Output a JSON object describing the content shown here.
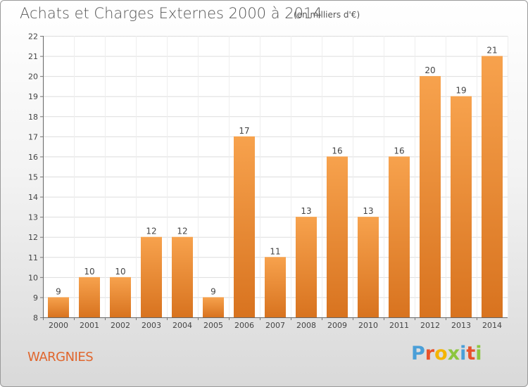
{
  "header": {
    "title": "Achats et Charges Externes 2000 à 2014",
    "subtitle": "(en milliers d'€)"
  },
  "footer": {
    "city": "WARGNIES",
    "brand": "Proxiti"
  },
  "colors": {
    "bar_light": "#f7a24d",
    "bar_dark": "#d8731f",
    "brand_letters": [
      "#4a9fd8",
      "#e8522b",
      "#f4b400",
      "#8cc63f",
      "#4a9fd8",
      "#e8522b",
      "#8cc63f"
    ]
  },
  "chart_data": {
    "type": "bar",
    "title": "Achats et Charges Externes 2000 à 2014",
    "subtitle": "(en milliers d'€)",
    "categories": [
      "2000",
      "2001",
      "2002",
      "2003",
      "2004",
      "2005",
      "2006",
      "2007",
      "2008",
      "2009",
      "2010",
      "2011",
      "2012",
      "2013",
      "2014"
    ],
    "values": [
      9,
      10,
      10,
      12,
      12,
      9,
      17,
      11,
      13,
      16,
      13,
      16,
      20,
      19,
      21
    ],
    "ylim": [
      8,
      22
    ],
    "yticks": [
      8,
      9,
      10,
      11,
      12,
      13,
      14,
      15,
      16,
      17,
      18,
      19,
      20,
      21,
      22
    ],
    "grid": true,
    "xlabel": "",
    "ylabel": ""
  }
}
